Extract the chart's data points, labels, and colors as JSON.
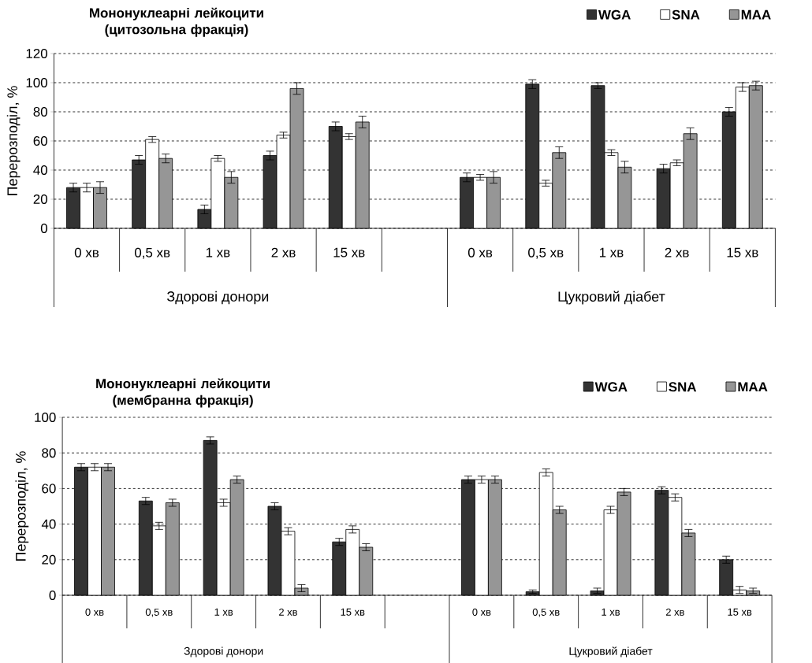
{
  "chart_data": [
    {
      "type": "bar",
      "title": "Мононуклеарні лейкоцити (цитозольна фракція)",
      "ylabel": "Перерозподіл, %",
      "categories": [
        "0 хв",
        "0,5 хв",
        "1 хв",
        "2 хв",
        "15 хв",
        null,
        "0 хв",
        "0,5 хв",
        "1 хв",
        "2 хв",
        "15 хв"
      ],
      "series": [
        {
          "name": "WGA",
          "color": "#333333",
          "values": [
            28,
            47,
            13,
            50,
            70,
            null,
            35,
            99,
            98,
            41,
            80
          ],
          "errors": [
            3,
            3,
            3,
            3,
            3,
            null,
            3,
            3,
            2,
            3,
            3
          ]
        },
        {
          "name": "SNA",
          "color": "#ffffff",
          "values": [
            28,
            61,
            48,
            64,
            63,
            null,
            35,
            31,
            52,
            45,
            97
          ],
          "errors": [
            3,
            2,
            2,
            2,
            2,
            null,
            2,
            2,
            2,
            2,
            3
          ]
        },
        {
          "name": "MAA",
          "color": "#969696",
          "values": [
            28,
            48,
            35,
            96,
            73,
            null,
            35,
            52,
            42,
            65,
            98
          ],
          "errors": [
            4,
            3,
            4,
            4,
            4,
            null,
            4,
            4,
            4,
            4,
            3
          ]
        }
      ],
      "ylim": [
        0,
        120
      ],
      "yticks": [
        0,
        20,
        40,
        60,
        80,
        100,
        120
      ],
      "grid": "y",
      "legend": "top right",
      "annotations": [
        "Здорові донори",
        "Цукровий діабет"
      ]
    },
    {
      "type": "bar",
      "title": "Мононуклеарні лейкоцити (мембранна фракція)",
      "ylabel": "Перерозподіл, %",
      "categories": [
        "0 хв",
        "0,5 хв",
        "1 хв",
        "2 хв",
        "15 хв",
        null,
        "0 хв",
        "0,5 хв",
        "1 хв",
        "2 хв",
        "15 хв"
      ],
      "series": [
        {
          "name": "WGA",
          "color": "#333333",
          "values": [
            72,
            53,
            87,
            50,
            30,
            null,
            65,
            2,
            2.5,
            59,
            20
          ],
          "errors": [
            2,
            2,
            2,
            2,
            2,
            null,
            2,
            1,
            1.5,
            2,
            2
          ]
        },
        {
          "name": "SNA",
          "color": "#ffffff",
          "values": [
            72,
            39,
            52,
            36,
            37,
            null,
            65,
            69,
            48,
            55,
            3
          ],
          "errors": [
            2,
            2,
            2,
            2,
            2,
            null,
            2,
            2,
            2,
            2,
            2
          ]
        },
        {
          "name": "MAA",
          "color": "#969696",
          "values": [
            72,
            52,
            65,
            4,
            27,
            null,
            65,
            48,
            58,
            35,
            2.5
          ],
          "errors": [
            2,
            2,
            2,
            2,
            2,
            null,
            2,
            2,
            2,
            2,
            1.5
          ]
        }
      ],
      "ylim": [
        0,
        100
      ],
      "yticks": [
        0,
        20,
        40,
        60,
        80,
        100
      ],
      "grid": "y",
      "legend": "top right",
      "annotations": [
        "Здорові донори",
        "Цукровий діабет"
      ]
    }
  ]
}
